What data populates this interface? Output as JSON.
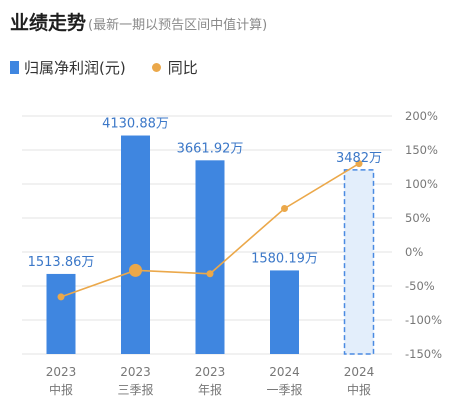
{
  "header": {
    "title": "业绩走势",
    "subtitle": "(最新一期以预告区间中值计算)"
  },
  "legend": {
    "bar_label": "归属净利润(元)",
    "line_label": "同比"
  },
  "colors": {
    "bar": "#3f86e0",
    "bar_forecast_fill": "#e3eefb",
    "bar_forecast_stroke": "#4a8ae2",
    "line": "#eba84a",
    "value_label": "#3c78c8",
    "tick_label": "#777777",
    "grid": "#e3e3e3"
  },
  "chart_data": {
    "type": "bar+line",
    "categories": [
      [
        "2023",
        "中报"
      ],
      [
        "2023",
        "三季报"
      ],
      [
        "2023",
        "年报"
      ],
      [
        "2024",
        "一季报"
      ],
      [
        "2024",
        "中报"
      ]
    ],
    "series": [
      {
        "name": "归属净利润(元)",
        "type": "bar",
        "unit": "万",
        "values": [
          1513.86,
          4130.88,
          3661.92,
          1580.19,
          3482
        ],
        "labels": [
          "1513.86万",
          "4130.88万",
          "3661.92万",
          "1580.19万",
          "3482万"
        ],
        "forecast": [
          false,
          false,
          false,
          false,
          true
        ]
      },
      {
        "name": "同比",
        "type": "line",
        "unit": "%",
        "values": [
          -66,
          -27,
          -32,
          64,
          130
        ]
      }
    ],
    "y_right": {
      "ticks": [
        "200%",
        "150%",
        "100%",
        "50%",
        "0%",
        "-50%",
        "-100%",
        "-150%"
      ],
      "range": [
        -150,
        200
      ]
    },
    "y_left_range": [
      0,
      4500
    ],
    "grid": true,
    "legend_position": "top-left"
  }
}
